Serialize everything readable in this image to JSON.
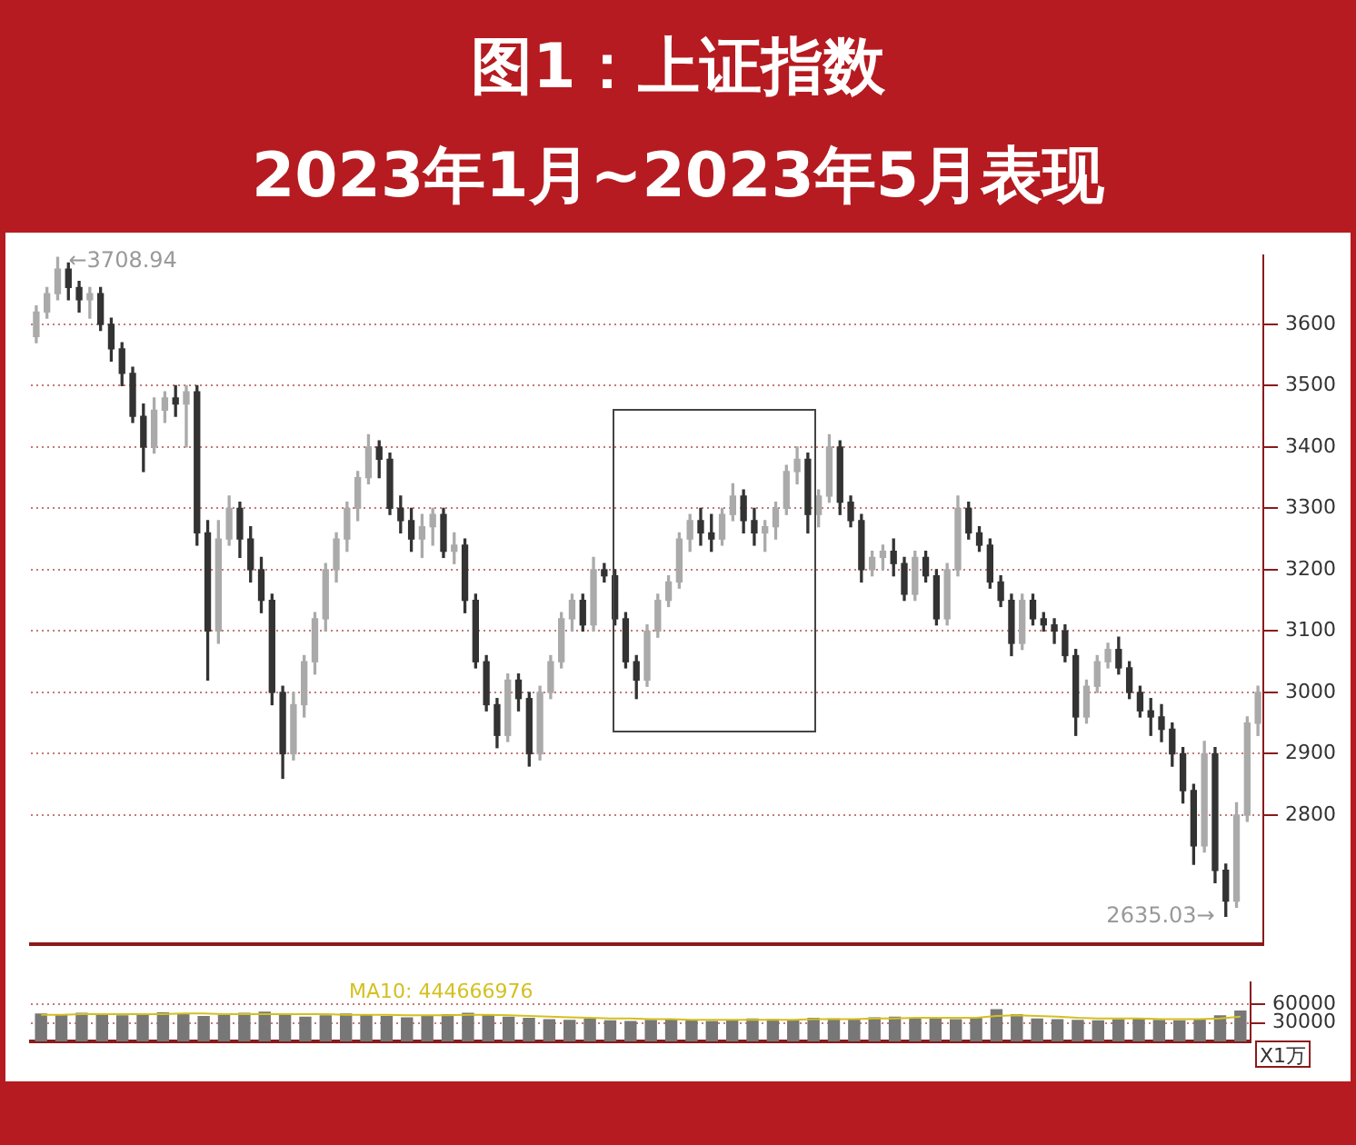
{
  "chart_data": [
    {
      "type": "candlestick",
      "title": "图1：上证指数",
      "subtitle": "2023年1月~2023年5月表现",
      "colors": [
        "#aaaaaa",
        "#aaaaaa",
        "#aaaaaa",
        "#333333",
        "#333333",
        "#aaaaaa",
        "#333333",
        "#333333",
        "#333333",
        "#333333",
        "#333333",
        "#aaaaaa",
        "#aaaaaa",
        "#333333",
        "#aaaaaa",
        "#333333",
        "#333333",
        "#aaaaaa",
        "#aaaaaa",
        "#333333",
        "#333333",
        "#333333",
        "#333333",
        "#333333",
        "#aaaaaa",
        "#aaaaaa",
        "#aaaaaa",
        "#aaaaaa",
        "#aaaaaa",
        "#aaaaaa",
        "#aaaaaa",
        "#aaaaaa",
        "#333333",
        "#333333",
        "#333333",
        "#333333",
        "#aaaaaa",
        "#aaaaaa",
        "#333333",
        "#aaaaaa",
        "#333333",
        "#333333",
        "#333333",
        "#333333",
        "#aaaaaa",
        "#333333",
        "#333333",
        "#aaaaaa",
        "#aaaaaa",
        "#aaaaaa",
        "#aaaaaa",
        "#333333",
        "#aaaaaa",
        "#333333",
        "#333333",
        "#333333",
        "#333333",
        "#aaaaaa",
        "#aaaaaa",
        "#aaaaaa",
        "#aaaaaa",
        "#aaaaaa",
        "#333333",
        "#333333",
        "#aaaaaa",
        "#aaaaaa",
        "#333333",
        "#333333",
        "#aaaaaa",
        "#aaaaaa",
        "#aaaaaa",
        "#aaaaaa",
        "#333333",
        "#aaaaaa",
        "#aaaaaa",
        "#333333",
        "#333333",
        "#333333",
        "#aaaaaa",
        "#aaaaaa",
        "#333333",
        "#333333",
        "#aaaaaa",
        "#333333",
        "#333333",
        "#aaaaaa",
        "#aaaaaa",
        "#333333",
        "#333333",
        "#333333",
        "#333333",
        "#333333",
        "#aaaaaa",
        "#333333",
        "#333333",
        "#333333",
        "#333333",
        "#333333",
        "#aaaaaa",
        "#aaaaaa",
        "#aaaaaa",
        "#333333",
        "#333333",
        "#333333",
        "#333333",
        "#333333",
        "#333333",
        "#333333",
        "#333333",
        "#aaaaaa",
        "#333333",
        "#333333",
        "#aaaaaa",
        "#aaaaaa",
        "#aaaaaa"
      ],
      "categories": [
        null,
        null,
        null,
        null,
        null,
        null,
        null,
        null,
        null,
        null,
        null,
        null,
        null,
        null,
        null,
        null,
        null,
        null,
        null,
        null,
        null,
        null,
        null,
        null,
        null,
        null,
        null,
        null,
        null,
        null,
        null,
        null,
        null,
        null,
        null,
        null,
        null,
        null,
        null,
        null,
        null,
        null,
        null,
        null,
        null,
        null,
        null,
        null,
        null,
        null,
        null,
        null,
        null,
        null,
        null,
        null,
        null,
        null,
        null,
        null,
        null,
        null,
        null,
        null,
        null,
        null,
        null,
        null,
        null,
        null,
        null,
        null,
        null,
        null,
        null,
        null,
        null,
        null,
        null,
        null,
        null,
        null,
        null,
        null,
        null,
        null,
        null,
        null,
        null,
        null,
        null,
        null,
        null,
        null,
        null,
        null,
        null,
        null,
        null,
        null,
        null,
        null,
        null,
        null,
        null,
        null,
        null,
        null,
        null,
        null,
        null,
        null,
        null,
        null,
        null
      ],
      "ohlc": [
        [
          3580,
          3630,
          3570,
          3620
        ],
        [
          3620,
          3660,
          3610,
          3650
        ],
        [
          3650,
          3708.94,
          3640,
          3690
        ],
        [
          3690,
          3700,
          3640,
          3660
        ],
        [
          3660,
          3670,
          3620,
          3640
        ],
        [
          3640,
          3660,
          3610,
          3650
        ],
        [
          3650,
          3660,
          3590,
          3600
        ],
        [
          3600,
          3610,
          3540,
          3560
        ],
        [
          3560,
          3570,
          3500,
          3520
        ],
        [
          3520,
          3530,
          3440,
          3450
        ],
        [
          3450,
          3470,
          3360,
          3400
        ],
        [
          3400,
          3480,
          3390,
          3460
        ],
        [
          3460,
          3490,
          3440,
          3480
        ],
        [
          3480,
          3500,
          3450,
          3470
        ],
        [
          3470,
          3500,
          3400,
          3490
        ],
        [
          3490,
          3500,
          3240,
          3260
        ],
        [
          3260,
          3280,
          3020,
          3100
        ],
        [
          3100,
          3280,
          3080,
          3250
        ],
        [
          3250,
          3320,
          3240,
          3300
        ],
        [
          3300,
          3310,
          3220,
          3250
        ],
        [
          3250,
          3270,
          3180,
          3200
        ],
        [
          3200,
          3220,
          3130,
          3150
        ],
        [
          3150,
          3160,
          2980,
          3000
        ],
        [
          3000,
          3010,
          2860,
          2900
        ],
        [
          2900,
          3000,
          2890,
          2980
        ],
        [
          2980,
          3060,
          2960,
          3050
        ],
        [
          3050,
          3130,
          3030,
          3120
        ],
        [
          3120,
          3210,
          3100,
          3200
        ],
        [
          3200,
          3260,
          3180,
          3250
        ],
        [
          3250,
          3310,
          3230,
          3300
        ],
        [
          3300,
          3360,
          3280,
          3350
        ],
        [
          3350,
          3420,
          3340,
          3400
        ],
        [
          3400,
          3410,
          3350,
          3380
        ],
        [
          3380,
          3390,
          3290,
          3300
        ],
        [
          3300,
          3320,
          3260,
          3280
        ],
        [
          3280,
          3300,
          3230,
          3250
        ],
        [
          3250,
          3290,
          3220,
          3270
        ],
        [
          3270,
          3300,
          3240,
          3290
        ],
        [
          3290,
          3300,
          3220,
          3230
        ],
        [
          3230,
          3260,
          3210,
          3240
        ],
        [
          3240,
          3250,
          3130,
          3150
        ],
        [
          3150,
          3160,
          3040,
          3050
        ],
        [
          3050,
          3060,
          2970,
          2980
        ],
        [
          2980,
          2990,
          2910,
          2930
        ],
        [
          2930,
          3030,
          2920,
          3020
        ],
        [
          3020,
          3030,
          2970,
          2990
        ],
        [
          2990,
          3000,
          2880,
          2900
        ],
        [
          2900,
          3010,
          2890,
          3000
        ],
        [
          3000,
          3060,
          2990,
          3050
        ],
        [
          3050,
          3130,
          3040,
          3120
        ],
        [
          3120,
          3160,
          3100,
          3150
        ],
        [
          3150,
          3160,
          3100,
          3110
        ],
        [
          3110,
          3220,
          3100,
          3200
        ],
        [
          3200,
          3210,
          3180,
          3190
        ],
        [
          3190,
          3200,
          3110,
          3120
        ],
        [
          3120,
          3130,
          3040,
          3050
        ],
        [
          3050,
          3060,
          2990,
          3020
        ],
        [
          3020,
          3110,
          3010,
          3100
        ],
        [
          3100,
          3160,
          3090,
          3150
        ],
        [
          3150,
          3190,
          3140,
          3180
        ],
        [
          3180,
          3260,
          3170,
          3250
        ],
        [
          3250,
          3290,
          3230,
          3280
        ],
        [
          3280,
          3300,
          3240,
          3260
        ],
        [
          3260,
          3290,
          3230,
          3250
        ],
        [
          3250,
          3300,
          3240,
          3290
        ],
        [
          3290,
          3340,
          3280,
          3320
        ],
        [
          3320,
          3330,
          3260,
          3280
        ],
        [
          3280,
          3300,
          3240,
          3260
        ],
        [
          3260,
          3280,
          3230,
          3270
        ],
        [
          3270,
          3310,
          3250,
          3300
        ],
        [
          3300,
          3370,
          3290,
          3360
        ],
        [
          3360,
          3400,
          3340,
          3380
        ],
        [
          3380,
          3390,
          3260,
          3290
        ],
        [
          3290,
          3330,
          3270,
          3320
        ],
        [
          3320,
          3420,
          3310,
          3400
        ],
        [
          3400,
          3410,
          3290,
          3310
        ],
        [
          3310,
          3320,
          3270,
          3280
        ],
        [
          3280,
          3290,
          3180,
          3200
        ],
        [
          3200,
          3230,
          3190,
          3220
        ],
        [
          3220,
          3240,
          3200,
          3230
        ],
        [
          3230,
          3250,
          3190,
          3210
        ],
        [
          3210,
          3220,
          3150,
          3160
        ],
        [
          3160,
          3230,
          3150,
          3220
        ],
        [
          3220,
          3230,
          3180,
          3190
        ],
        [
          3190,
          3200,
          3110,
          3120
        ],
        [
          3120,
          3210,
          3110,
          3200
        ],
        [
          3200,
          3320,
          3190,
          3300
        ],
        [
          3300,
          3310,
          3250,
          3260
        ],
        [
          3260,
          3270,
          3230,
          3240
        ],
        [
          3240,
          3250,
          3170,
          3180
        ],
        [
          3180,
          3190,
          3140,
          3150
        ],
        [
          3150,
          3160,
          3060,
          3080
        ],
        [
          3080,
          3160,
          3070,
          3150
        ],
        [
          3150,
          3160,
          3110,
          3120
        ],
        [
          3120,
          3130,
          3100,
          3110
        ],
        [
          3110,
          3120,
          3080,
          3100
        ],
        [
          3100,
          3110,
          3050,
          3060
        ],
        [
          3060,
          3070,
          2930,
          2960
        ],
        [
          2960,
          3020,
          2950,
          3010
        ],
        [
          3010,
          3060,
          3000,
          3050
        ],
        [
          3050,
          3080,
          3040,
          3070
        ],
        [
          3070,
          3090,
          3030,
          3040
        ],
        [
          3040,
          3050,
          2990,
          3000
        ],
        [
          3000,
          3010,
          2960,
          2970
        ],
        [
          2970,
          2990,
          2930,
          2960
        ],
        [
          2960,
          2980,
          2920,
          2940
        ],
        [
          2940,
          2950,
          2880,
          2900
        ],
        [
          2900,
          2910,
          2820,
          2840
        ],
        [
          2840,
          2850,
          2720,
          2750
        ],
        [
          2750,
          2920,
          2740,
          2900
        ],
        [
          2900,
          2910,
          2690,
          2710
        ],
        [
          2710,
          2720,
          2635.03,
          2660
        ],
        [
          2660,
          2820,
          2650,
          2800
        ],
        [
          2800,
          2960,
          2790,
          2950
        ],
        [
          2950,
          3010,
          2930,
          3000
        ]
      ],
      "ylim": [
        2590,
        3712
      ],
      "yticks": [
        2800,
        2900,
        3000,
        3100,
        3200,
        3300,
        3400,
        3500,
        3600
      ],
      "grid": "y",
      "annotations": [
        "←3708.94",
        "2635.03→"
      ]
    },
    {
      "type": "bar",
      "ylabel": "X1万",
      "legend": "top left",
      "categories": [
        null,
        null,
        null,
        null,
        null,
        null,
        null,
        null,
        null,
        null,
        null,
        null,
        null,
        null,
        null,
        null,
        null,
        null,
        null,
        null,
        null,
        null,
        null,
        null,
        null,
        null,
        null,
        null,
        null,
        null,
        null,
        null,
        null,
        null,
        null,
        null,
        null,
        null,
        null,
        null,
        null,
        null,
        null,
        null,
        null,
        null,
        null,
        null,
        null,
        null,
        null,
        null,
        null,
        null,
        null,
        null,
        null,
        null,
        null,
        null
      ],
      "series": [
        {
          "color": "#777777",
          "values": [
            45000,
            43000,
            46000,
            44000,
            42000,
            45000,
            47000,
            44000,
            41000,
            43000,
            46000,
            48000,
            44000,
            40000,
            42000,
            45000,
            43000,
            41000,
            39000,
            42000,
            44000,
            46000,
            43000,
            40000,
            38000,
            36000,
            35000,
            37000,
            34000,
            33000,
            35000,
            36000,
            34000,
            33000,
            35000,
            37000,
            36000,
            35000,
            38000,
            37000,
            36000,
            39000,
            40000,
            38000,
            37000,
            36000,
            38000,
            52000,
            44000,
            37000,
            36000,
            35000,
            34000,
            36000,
            37000,
            35000,
            34000,
            36000,
            42000,
            50000
          ]
        },
        {
          "type": "line",
          "name": "MA10: 444666976",
          "color": "#d4c020",
          "values": [
            43000,
            43000,
            44000,
            44000,
            44000,
            44000,
            44000,
            45000,
            45000,
            44000,
            44000,
            44000,
            44000,
            44000,
            44000,
            43000,
            43000,
            43000,
            42000,
            42000,
            42000,
            43000,
            43000,
            42000,
            41000,
            40000,
            39000,
            38000,
            37000,
            37000,
            36000,
            36000,
            35000,
            35000,
            35000,
            35000,
            35000,
            35000,
            36000,
            36000,
            36000,
            37000,
            37000,
            38000,
            38000,
            38000,
            38000,
            41000,
            42000,
            41000,
            40000,
            38000,
            37000,
            37000,
            37000,
            36000,
            36000,
            36000,
            37000,
            40000
          ]
        }
      ],
      "ylim": [
        0,
        95000
      ],
      "yticks": [
        30000,
        60000
      ],
      "grid": "y"
    }
  ]
}
